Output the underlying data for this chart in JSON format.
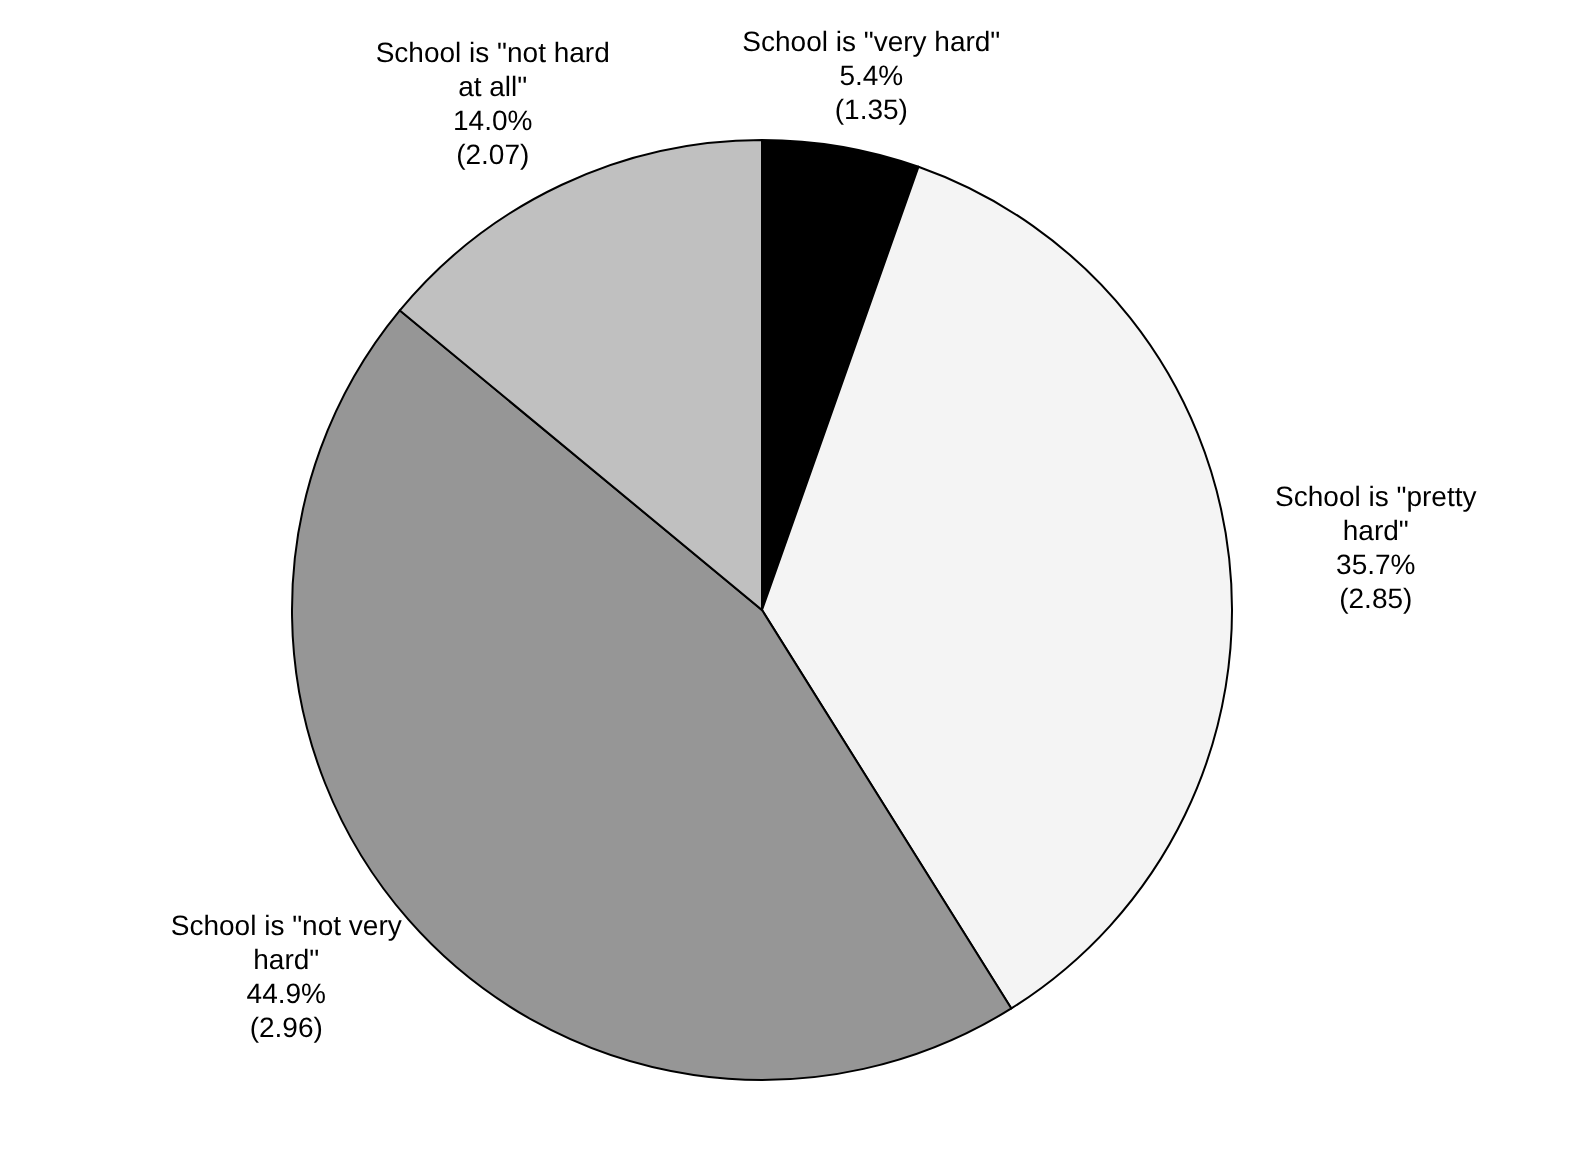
{
  "chart_data": {
    "type": "pie",
    "categories": [
      "School is \"very hard\"",
      "School is \"pretty hard\"",
      "School is \"not very hard\"",
      "School is \"not hard at all\""
    ],
    "values": [
      5.4,
      35.7,
      44.9,
      14.0
    ],
    "value_labels": [
      "5.4%\n(1.35)",
      "35.7%\n(2.85)",
      "44.9%\n(2.96)",
      "14.0%\n(2.07)"
    ],
    "colors": [
      "#000000",
      "#f4f4f4",
      "#969696",
      "#c0c0c0"
    ]
  }
}
